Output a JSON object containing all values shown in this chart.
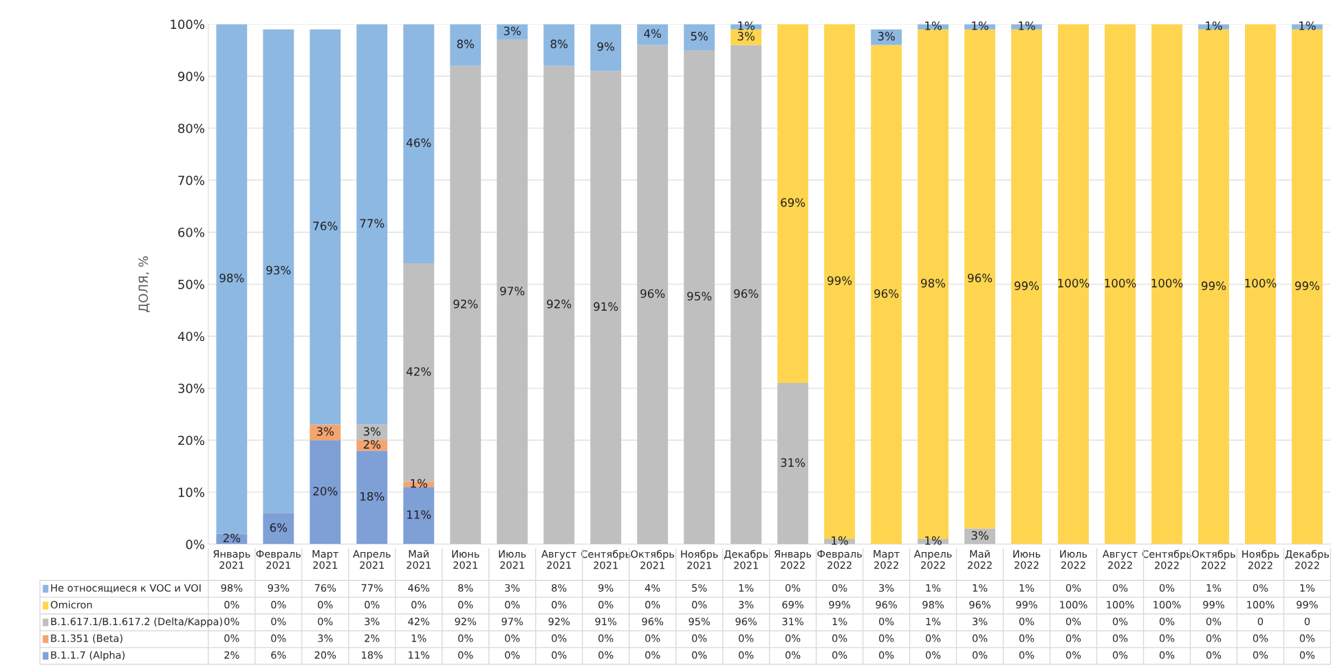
{
  "chart_data": {
    "type": "bar",
    "stacked": true,
    "ylabel": "ДОЛЯ, %",
    "categories": [
      "Январь 2021",
      "Февраль 2021",
      "Март 2021",
      "Апрель 2021",
      "Май 2021",
      "Июнь 2021",
      "Июль 2021",
      "Август 2021",
      "Сентябрь 2021",
      "Октябрь 2021",
      "Ноябрь 2021",
      "Декабрь 2021",
      "Январь 2022",
      "Февраль 2022",
      "Март 2022",
      "Апрель 2022",
      "Май 2022",
      "Июнь 2022",
      "Июль 2022",
      "Август 2022",
      "Сентябрь 2022",
      "Октябрь 2022",
      "Ноябрь 2022",
      "Декабрь 2022"
    ],
    "ylim": [
      0,
      100
    ],
    "yticks": [
      {
        "value": 0,
        "label": "0%"
      },
      {
        "value": 10,
        "label": "10%"
      },
      {
        "value": 20,
        "label": "20%"
      },
      {
        "value": 30,
        "label": "30%"
      },
      {
        "value": 40,
        "label": "40%"
      },
      {
        "value": 50,
        "label": "50%"
      },
      {
        "value": 60,
        "label": "60%"
      },
      {
        "value": 70,
        "label": "70%"
      },
      {
        "value": 80,
        "label": "80%"
      },
      {
        "value": 90,
        "label": "90%"
      },
      {
        "value": 100,
        "label": "100%"
      }
    ],
    "grid": "y",
    "legend": "bottom",
    "series": [
      {
        "name": "B.1.1.7 (Alpha)",
        "color": "#7f9fd7",
        "values": [
          2,
          6,
          20,
          18,
          11,
          0,
          0,
          0,
          0,
          0,
          0,
          0,
          0,
          0,
          0,
          0,
          0,
          0,
          0,
          0,
          0,
          0,
          0,
          0
        ],
        "value_labels": [
          "2%",
          "6%",
          "20%",
          "18%",
          "11%",
          "0%",
          "0%",
          "0%",
          "0%",
          "0%",
          "0%",
          "0%",
          "0%",
          "0%",
          "0%",
          "0%",
          "0%",
          "0%",
          "0%",
          "0%",
          "0%",
          "0%",
          "0%",
          "0%"
        ]
      },
      {
        "name": "B.1.351 (Beta)",
        "color": "#f4a46e",
        "values": [
          0,
          0,
          3,
          2,
          1,
          0,
          0,
          0,
          0,
          0,
          0,
          0,
          0,
          0,
          0,
          0,
          0,
          0,
          0,
          0,
          0,
          0,
          0,
          0
        ],
        "value_labels": [
          "0%",
          "0%",
          "3%",
          "2%",
          "1%",
          "0%",
          "0%",
          "0%",
          "0%",
          "0%",
          "0%",
          "0%",
          "0%",
          "0%",
          "0%",
          "0%",
          "0%",
          "0%",
          "0%",
          "0%",
          "0%",
          "0%",
          "0%",
          "0%"
        ]
      },
      {
        "name": "B.1.617.1/B.1.617.2 (Delta/Kappa)",
        "color": "#bfbfbf",
        "values": [
          0,
          0,
          0,
          3,
          42,
          92,
          97,
          92,
          91,
          96,
          95,
          96,
          31,
          1,
          0,
          1,
          3,
          0,
          0,
          0,
          0,
          0,
          0,
          0
        ],
        "value_labels": [
          "0%",
          "0%",
          "0%",
          "3%",
          "42%",
          "92%",
          "97%",
          "92%",
          "91%",
          "96%",
          "95%",
          "96%",
          "31%",
          "1%",
          "0%",
          "1%",
          "3%",
          "0%",
          "0%",
          "0%",
          "0%",
          "0%",
          "0",
          "0"
        ]
      },
      {
        "name": "Omicron",
        "color": "#ffd54f",
        "values": [
          0,
          0,
          0,
          0,
          0,
          0,
          0,
          0,
          0,
          0,
          0,
          3,
          69,
          99,
          96,
          98,
          96,
          99,
          100,
          100,
          100,
          99,
          100,
          99
        ],
        "value_labels": [
          "0%",
          "0%",
          "0%",
          "0%",
          "0%",
          "0%",
          "0%",
          "0%",
          "0%",
          "0%",
          "0%",
          "3%",
          "69%",
          "99%",
          "96%",
          "98%",
          "96%",
          "99%",
          "100%",
          "100%",
          "100%",
          "99%",
          "100%",
          "99%"
        ]
      },
      {
        "name": "Не относящиеся к VOC и VOI",
        "color": "#8db8e2",
        "values": [
          98,
          93,
          76,
          77,
          46,
          8,
          3,
          8,
          9,
          4,
          5,
          1,
          0,
          0,
          3,
          1,
          1,
          1,
          0,
          0,
          0,
          1,
          0,
          1
        ],
        "value_labels": [
          "98%",
          "93%",
          "76%",
          "77%",
          "46%",
          "8%",
          "3%",
          "8%",
          "9%",
          "4%",
          "5%",
          "1%",
          "0%",
          "0%",
          "3%",
          "1%",
          "1%",
          "1%",
          "0%",
          "0%",
          "0%",
          "1%",
          "0%",
          "1%"
        ]
      }
    ]
  }
}
